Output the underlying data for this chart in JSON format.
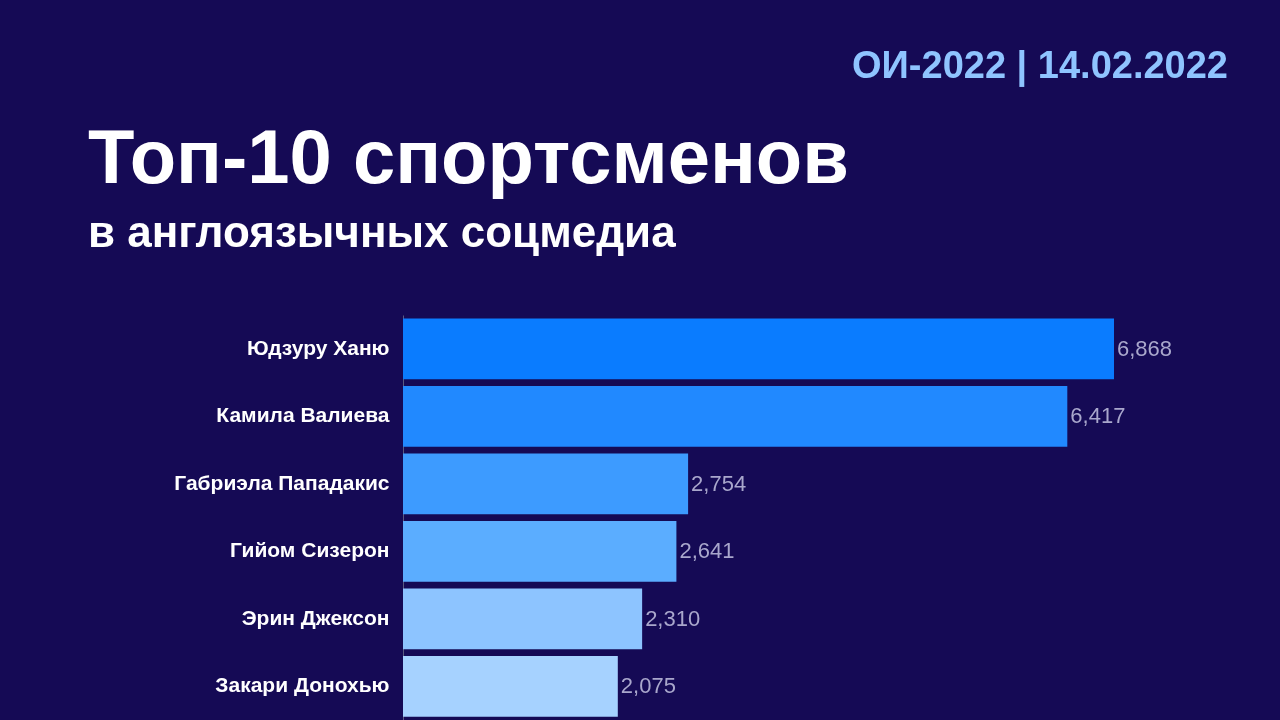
{
  "chart_data": {
    "type": "bar",
    "orientation": "horizontal",
    "title": "Топ-10 спортсменов",
    "subtitle": "в англоязычных соцмедиа",
    "annotations": [
      "ОИ-2022 | 14.02.2022"
    ],
    "categories": [
      "Юдзуру Ханю",
      "Камила Валиева",
      "Габриэла Пападакис",
      "Гийом Сизерон",
      "Эрин Джексон",
      "Закари Донохью"
    ],
    "values": [
      6868,
      6417,
      2754,
      2641,
      2310,
      2075
    ],
    "value_labels": [
      "6,868",
      "6,417",
      "2,754",
      "2,641",
      "2,310",
      "2,075"
    ],
    "colors": [
      "#0a7cff",
      "#2189ff",
      "#3d9bff",
      "#5badff",
      "#8dc4ff",
      "#a6d2ff"
    ]
  }
}
